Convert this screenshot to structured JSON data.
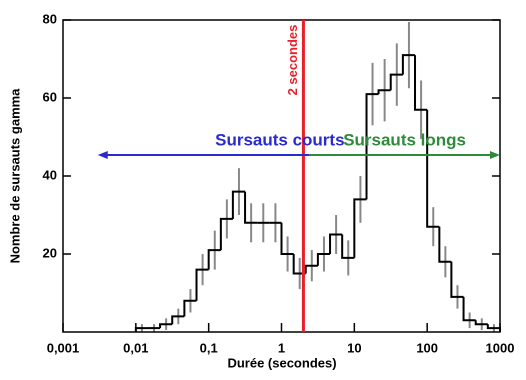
{
  "chart_data": {
    "type": "histogram",
    "x_label": "Durée (secondes)",
    "y_label": "Nombre de sursauts gamma",
    "bins": [
      0.01,
      0.0147,
      0.0215,
      0.0316,
      0.0464,
      0.0681,
      0.1,
      0.147,
      0.215,
      0.316,
      0.464,
      0.681,
      1,
      1.47,
      2.15,
      3.16,
      4.64,
      6.81,
      10,
      14.7,
      21.5,
      31.6,
      46.4,
      68.1,
      100,
      147,
      215,
      316,
      464,
      681,
      1000
    ],
    "values": [
      1,
      1,
      2,
      4,
      8,
      16,
      21,
      29,
      36,
      28,
      28,
      28,
      20,
      15,
      17,
      20,
      25,
      19,
      34,
      61,
      62,
      66,
      71,
      57,
      27,
      18,
      9,
      3,
      2,
      1
    ],
    "errors": [
      1,
      1,
      1.5,
      2,
      3,
      4,
      5,
      5,
      6,
      5,
      5,
      5,
      4.5,
      4,
      4,
      4.5,
      5,
      4.5,
      6,
      8,
      8,
      8,
      8.5,
      7.5,
      5,
      4,
      3,
      2,
      1.5,
      1
    ],
    "color": "#000000",
    "error_color": "#888888",
    "xlim": [
      0.001,
      1000
    ],
    "xscale": "log",
    "xticks": [
      {
        "value": 0.001,
        "label": "0,001"
      },
      {
        "value": 0.01,
        "label": "0,01"
      },
      {
        "value": 0.1,
        "label": "0,1"
      },
      1,
      10,
      100,
      1000
    ],
    "ylim": [
      0,
      80
    ],
    "yticks": [
      20,
      40,
      60,
      80
    ],
    "marker": {
      "x": 2,
      "label": "2 secondes",
      "color": "#e8202a"
    },
    "arrows": [
      {
        "label": "Sursauts courts",
        "color": "#2a2ad0",
        "from": 300,
        "to": 0.003
      },
      {
        "label": "Sursauts longs",
        "color": "#2e8b3a",
        "from": 2.4,
        "to": 1000
      }
    ]
  }
}
